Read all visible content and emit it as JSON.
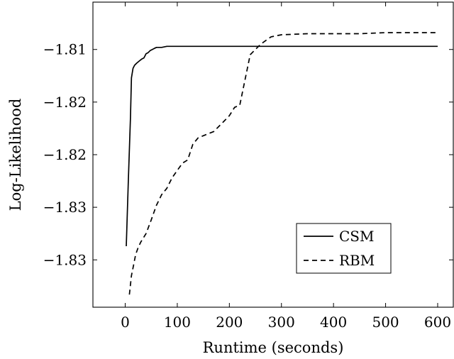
{
  "chart_data": {
    "type": "line",
    "xlabel": "Runtime (seconds)",
    "ylabel": "Log-Likelihood",
    "xlim": [
      -62,
      630
    ],
    "ylim": [
      -1.8345,
      -1.8055
    ],
    "x_ticks": [
      0,
      100,
      200,
      300,
      400,
      500,
      600
    ],
    "x_tick_labels": [
      "0",
      "100",
      "200",
      "300",
      "400",
      "500",
      "600"
    ],
    "y_ticks": [
      -1.81,
      -1.815,
      -1.82,
      -1.825,
      -1.83
    ],
    "y_tick_labels": [
      "−1.81",
      "−1.82",
      "−1.82",
      "−1.83",
      "−1.83"
    ],
    "grid": false,
    "legend_position": "bottom-right",
    "series": [
      {
        "name": "CSM",
        "style": "solid",
        "color": "#000000",
        "x": [
          2,
          4,
          6,
          8,
          10,
          12,
          15,
          18,
          22,
          27,
          32,
          36,
          40,
          44,
          48,
          52,
          56,
          60,
          64,
          70,
          80,
          100,
          120,
          150,
          200,
          250,
          300,
          400,
          500,
          600
        ],
        "y": [
          -1.8287,
          -1.8255,
          -1.8225,
          -1.8195,
          -1.8165,
          -1.8127,
          -1.8118,
          -1.8115,
          -1.8113,
          -1.8111,
          -1.8109,
          -1.8108,
          -1.8104,
          -1.8103,
          -1.8101,
          -1.81,
          -1.8099,
          -1.8098,
          -1.8098,
          -1.8098,
          -1.8097,
          -1.8097,
          -1.8097,
          -1.8097,
          -1.8097,
          -1.8097,
          -1.8097,
          -1.8097,
          -1.8097,
          -1.8097
        ]
      },
      {
        "name": "RBM",
        "style": "dashed",
        "color": "#000000",
        "x": [
          8,
          12,
          16,
          20,
          25,
          30,
          40,
          50,
          60,
          70,
          80,
          90,
          100,
          110,
          120,
          130,
          140,
          150,
          160,
          170,
          180,
          190,
          200,
          210,
          220,
          240,
          260,
          280,
          300,
          350,
          400,
          450,
          500,
          550,
          600
        ],
        "y": [
          -1.8333,
          -1.8315,
          -1.8305,
          -1.8295,
          -1.8288,
          -1.8283,
          -1.8275,
          -1.8262,
          -1.8248,
          -1.8238,
          -1.8232,
          -1.8222,
          -1.8215,
          -1.8208,
          -1.8205,
          -1.819,
          -1.8184,
          -1.8182,
          -1.818,
          -1.8178,
          -1.8173,
          -1.8168,
          -1.8163,
          -1.8155,
          -1.8153,
          -1.8105,
          -1.8095,
          -1.8088,
          -1.8086,
          -1.8085,
          -1.8085,
          -1.8085,
          -1.8084,
          -1.8084,
          -1.8084
        ]
      }
    ]
  }
}
